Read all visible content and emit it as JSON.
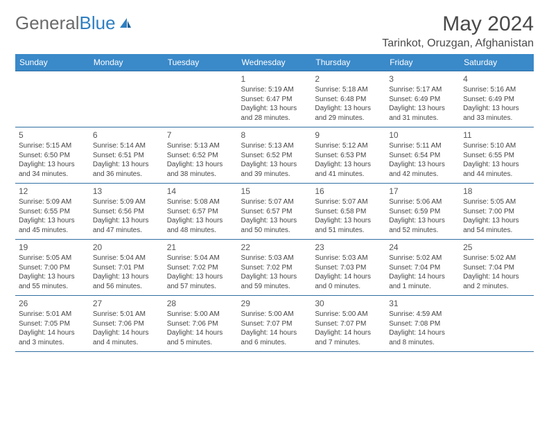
{
  "brand": {
    "part1": "General",
    "part2": "Blue"
  },
  "title": "May 2024",
  "location": "Tarinkot, Oruzgan, Afghanistan",
  "colors": {
    "header_bg": "#3a89c9",
    "header_text": "#ffffff",
    "rule": "#2f6ea3",
    "text": "#444444",
    "brand_gray": "#6a6a6a",
    "brand_blue": "#2f7fc1"
  },
  "weekdays": [
    "Sunday",
    "Monday",
    "Tuesday",
    "Wednesday",
    "Thursday",
    "Friday",
    "Saturday"
  ],
  "weeks": [
    [
      null,
      null,
      null,
      {
        "n": "1",
        "sr": "Sunrise: 5:19 AM",
        "ss": "Sunset: 6:47 PM",
        "d1": "Daylight: 13 hours",
        "d2": "and 28 minutes."
      },
      {
        "n": "2",
        "sr": "Sunrise: 5:18 AM",
        "ss": "Sunset: 6:48 PM",
        "d1": "Daylight: 13 hours",
        "d2": "and 29 minutes."
      },
      {
        "n": "3",
        "sr": "Sunrise: 5:17 AM",
        "ss": "Sunset: 6:49 PM",
        "d1": "Daylight: 13 hours",
        "d2": "and 31 minutes."
      },
      {
        "n": "4",
        "sr": "Sunrise: 5:16 AM",
        "ss": "Sunset: 6:49 PM",
        "d1": "Daylight: 13 hours",
        "d2": "and 33 minutes."
      }
    ],
    [
      {
        "n": "5",
        "sr": "Sunrise: 5:15 AM",
        "ss": "Sunset: 6:50 PM",
        "d1": "Daylight: 13 hours",
        "d2": "and 34 minutes."
      },
      {
        "n": "6",
        "sr": "Sunrise: 5:14 AM",
        "ss": "Sunset: 6:51 PM",
        "d1": "Daylight: 13 hours",
        "d2": "and 36 minutes."
      },
      {
        "n": "7",
        "sr": "Sunrise: 5:13 AM",
        "ss": "Sunset: 6:52 PM",
        "d1": "Daylight: 13 hours",
        "d2": "and 38 minutes."
      },
      {
        "n": "8",
        "sr": "Sunrise: 5:13 AM",
        "ss": "Sunset: 6:52 PM",
        "d1": "Daylight: 13 hours",
        "d2": "and 39 minutes."
      },
      {
        "n": "9",
        "sr": "Sunrise: 5:12 AM",
        "ss": "Sunset: 6:53 PM",
        "d1": "Daylight: 13 hours",
        "d2": "and 41 minutes."
      },
      {
        "n": "10",
        "sr": "Sunrise: 5:11 AM",
        "ss": "Sunset: 6:54 PM",
        "d1": "Daylight: 13 hours",
        "d2": "and 42 minutes."
      },
      {
        "n": "11",
        "sr": "Sunrise: 5:10 AM",
        "ss": "Sunset: 6:55 PM",
        "d1": "Daylight: 13 hours",
        "d2": "and 44 minutes."
      }
    ],
    [
      {
        "n": "12",
        "sr": "Sunrise: 5:09 AM",
        "ss": "Sunset: 6:55 PM",
        "d1": "Daylight: 13 hours",
        "d2": "and 45 minutes."
      },
      {
        "n": "13",
        "sr": "Sunrise: 5:09 AM",
        "ss": "Sunset: 6:56 PM",
        "d1": "Daylight: 13 hours",
        "d2": "and 47 minutes."
      },
      {
        "n": "14",
        "sr": "Sunrise: 5:08 AM",
        "ss": "Sunset: 6:57 PM",
        "d1": "Daylight: 13 hours",
        "d2": "and 48 minutes."
      },
      {
        "n": "15",
        "sr": "Sunrise: 5:07 AM",
        "ss": "Sunset: 6:57 PM",
        "d1": "Daylight: 13 hours",
        "d2": "and 50 minutes."
      },
      {
        "n": "16",
        "sr": "Sunrise: 5:07 AM",
        "ss": "Sunset: 6:58 PM",
        "d1": "Daylight: 13 hours",
        "d2": "and 51 minutes."
      },
      {
        "n": "17",
        "sr": "Sunrise: 5:06 AM",
        "ss": "Sunset: 6:59 PM",
        "d1": "Daylight: 13 hours",
        "d2": "and 52 minutes."
      },
      {
        "n": "18",
        "sr": "Sunrise: 5:05 AM",
        "ss": "Sunset: 7:00 PM",
        "d1": "Daylight: 13 hours",
        "d2": "and 54 minutes."
      }
    ],
    [
      {
        "n": "19",
        "sr": "Sunrise: 5:05 AM",
        "ss": "Sunset: 7:00 PM",
        "d1": "Daylight: 13 hours",
        "d2": "and 55 minutes."
      },
      {
        "n": "20",
        "sr": "Sunrise: 5:04 AM",
        "ss": "Sunset: 7:01 PM",
        "d1": "Daylight: 13 hours",
        "d2": "and 56 minutes."
      },
      {
        "n": "21",
        "sr": "Sunrise: 5:04 AM",
        "ss": "Sunset: 7:02 PM",
        "d1": "Daylight: 13 hours",
        "d2": "and 57 minutes."
      },
      {
        "n": "22",
        "sr": "Sunrise: 5:03 AM",
        "ss": "Sunset: 7:02 PM",
        "d1": "Daylight: 13 hours",
        "d2": "and 59 minutes."
      },
      {
        "n": "23",
        "sr": "Sunrise: 5:03 AM",
        "ss": "Sunset: 7:03 PM",
        "d1": "Daylight: 14 hours",
        "d2": "and 0 minutes."
      },
      {
        "n": "24",
        "sr": "Sunrise: 5:02 AM",
        "ss": "Sunset: 7:04 PM",
        "d1": "Daylight: 14 hours",
        "d2": "and 1 minute."
      },
      {
        "n": "25",
        "sr": "Sunrise: 5:02 AM",
        "ss": "Sunset: 7:04 PM",
        "d1": "Daylight: 14 hours",
        "d2": "and 2 minutes."
      }
    ],
    [
      {
        "n": "26",
        "sr": "Sunrise: 5:01 AM",
        "ss": "Sunset: 7:05 PM",
        "d1": "Daylight: 14 hours",
        "d2": "and 3 minutes."
      },
      {
        "n": "27",
        "sr": "Sunrise: 5:01 AM",
        "ss": "Sunset: 7:06 PM",
        "d1": "Daylight: 14 hours",
        "d2": "and 4 minutes."
      },
      {
        "n": "28",
        "sr": "Sunrise: 5:00 AM",
        "ss": "Sunset: 7:06 PM",
        "d1": "Daylight: 14 hours",
        "d2": "and 5 minutes."
      },
      {
        "n": "29",
        "sr": "Sunrise: 5:00 AM",
        "ss": "Sunset: 7:07 PM",
        "d1": "Daylight: 14 hours",
        "d2": "and 6 minutes."
      },
      {
        "n": "30",
        "sr": "Sunrise: 5:00 AM",
        "ss": "Sunset: 7:07 PM",
        "d1": "Daylight: 14 hours",
        "d2": "and 7 minutes."
      },
      {
        "n": "31",
        "sr": "Sunrise: 4:59 AM",
        "ss": "Sunset: 7:08 PM",
        "d1": "Daylight: 14 hours",
        "d2": "and 8 minutes."
      },
      null
    ]
  ]
}
